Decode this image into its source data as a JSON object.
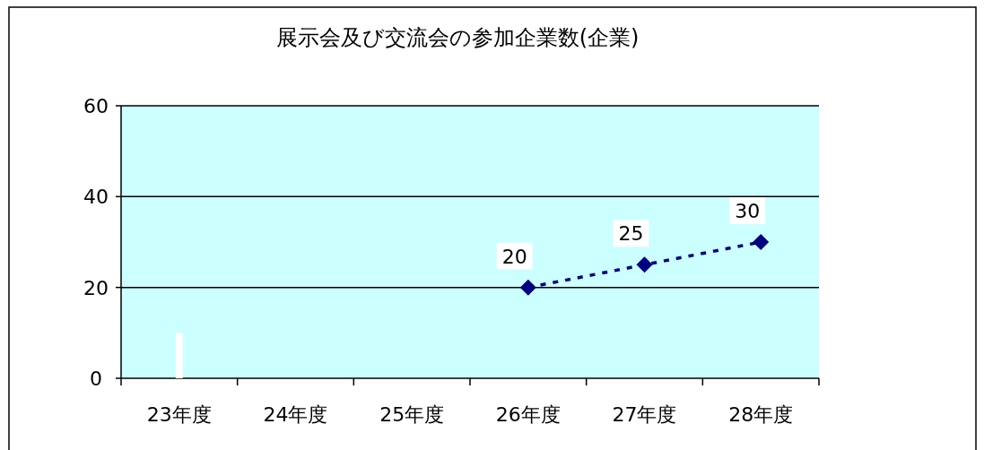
{
  "chart_data": {
    "type": "line",
    "title": "展示会及び交流会の参加企業数(企業)",
    "categories": [
      "23年度",
      "24年度",
      "25年度",
      "26年度",
      "27年度",
      "28年度"
    ],
    "series": [
      {
        "type": "bar",
        "color": "#ffffff",
        "values": [
          10,
          null,
          null,
          null,
          null,
          null
        ]
      },
      {
        "color": "#000080",
        "values": [
          null,
          null,
          null,
          20,
          25,
          30
        ],
        "marker": "diamond",
        "line_style": "dotted",
        "data_labels": true
      }
    ],
    "ylim": [
      0,
      60
    ],
    "yticks": [
      0,
      20,
      40,
      60
    ],
    "grid": "y"
  }
}
